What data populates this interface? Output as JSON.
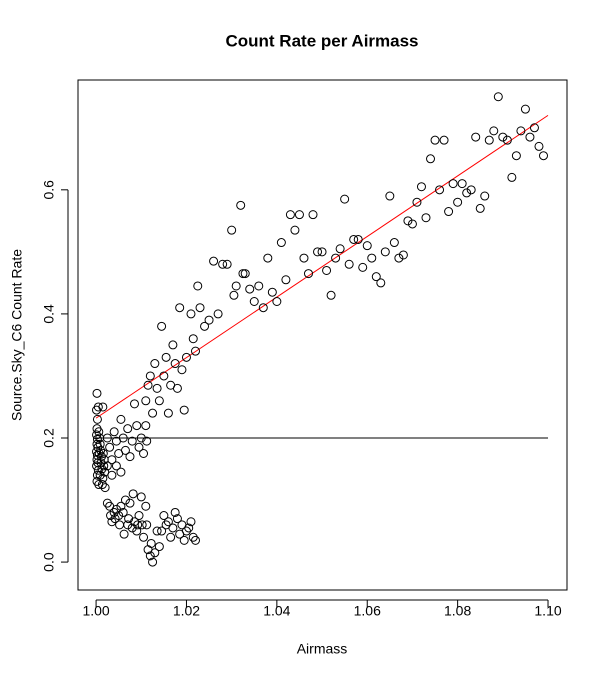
{
  "chart_data": {
    "type": "scatter",
    "title": "Count Rate per Airmass",
    "x_label": "Airmass",
    "y_label": "Source.Sky_C6 Count Rate",
    "color": "#000000",
    "xlim": [
      0.996,
      1.1042
    ],
    "ylim": [
      -0.045,
      0.777
    ],
    "xticks": [
      {
        "value": 1.0,
        "label": "1.00"
      },
      1.02,
      1.04,
      1.06,
      1.08,
      {
        "value": 1.1,
        "label": "1.10"
      }
    ],
    "yticks": [
      {
        "value": 0,
        "label": "0.0"
      },
      0.2,
      0.4,
      0.6
    ],
    "x": [
      1.0002,
      1.0001,
      1.0003,
      1.0002,
      1.0001,
      1.0003,
      1.0002,
      1.0004,
      1.0001,
      1.0003,
      1.0002,
      1.0004,
      1.0001,
      1.0005,
      1.0003,
      1.0002,
      1.0006,
      1.0008,
      1.0009,
      1.001,
      1.0012,
      1.0011,
      1.0013,
      1.0009,
      1.0015,
      1.0014,
      1.0016,
      1.0018,
      1.0017,
      1.0006,
      1.0007,
      1.0019,
      1.0015,
      1.0005,
      1.002,
      1.0025,
      1.003,
      1.0032,
      1.0035,
      1.004,
      1.0042,
      1.0045,
      1.005,
      1.0052,
      1.0055,
      1.006,
      1.0062,
      1.0065,
      1.007,
      1.0072,
      1.0075,
      1.008,
      1.0082,
      1.0085,
      1.009,
      1.0092,
      1.0095,
      1.01,
      1.0102,
      1.0105,
      1.011,
      1.0112,
      1.0115,
      1.012,
      1.0122,
      1.0125,
      1.013,
      1.0135,
      1.014,
      1.0145,
      1.015,
      1.0155,
      1.016,
      1.0165,
      1.017,
      1.0175,
      1.018,
      1.0185,
      1.019,
      1.0195,
      1.02,
      1.0205,
      1.021,
      1.0215,
      1.022,
      1.0025,
      1.003,
      1.0035,
      1.004,
      1.0045,
      1.005,
      1.0055,
      1.006,
      1.0065,
      1.007,
      1.0075,
      1.008,
      1.0085,
      1.009,
      1.0095,
      1.01,
      1.0105,
      1.011,
      1.0112,
      1.0035,
      1.0045,
      1.0055,
      1.0025,
      1.011,
      1.0115,
      1.012,
      1.0125,
      1.013,
      1.0135,
      1.014,
      1.0145,
      1.015,
      1.0155,
      1.016,
      1.0165,
      1.017,
      1.0175,
      1.018,
      1.0185,
      1.019,
      1.0195,
      1.02,
      1.021,
      1.0215,
      1.022,
      1.0225,
      1.023,
      1.024,
      1.025,
      1.026,
      1.027,
      1.028,
      1.029,
      1.03,
      1.0305,
      1.031,
      1.032,
      1.0325,
      1.033,
      1.034,
      1.035,
      1.036,
      1.037,
      1.038,
      1.039,
      1.04,
      1.041,
      1.042,
      1.043,
      1.044,
      1.045,
      1.046,
      1.047,
      1.048,
      1.049,
      1.05,
      1.051,
      1.052,
      1.053,
      1.054,
      1.055,
      1.056,
      1.057,
      1.058,
      1.059,
      1.06,
      1.061,
      1.062,
      1.063,
      1.064,
      1.065,
      1.066,
      1.067,
      1.068,
      1.069,
      1.07,
      1.071,
      1.072,
      1.073,
      1.074,
      1.075,
      1.076,
      1.077,
      1.078,
      1.079,
      1.08,
      1.081,
      1.082,
      1.083,
      1.084,
      1.085,
      1.086,
      1.087,
      1.088,
      1.089,
      1.09,
      1.091,
      1.092,
      1.093,
      1.094,
      1.095,
      1.096,
      1.097,
      1.098,
      1.099
    ],
    "values": [
      0.272,
      0.245,
      0.23,
      0.215,
      0.205,
      0.198,
      0.19,
      0.185,
      0.178,
      0.172,
      0.165,
      0.16,
      0.155,
      0.148,
      0.14,
      0.13,
      0.125,
      0.2,
      0.19,
      0.18,
      0.17,
      0.16,
      0.15,
      0.14,
      0.135,
      0.125,
      0.175,
      0.165,
      0.155,
      0.21,
      0.175,
      0.145,
      0.25,
      0.25,
      0.12,
      0.095,
      0.09,
      0.075,
      0.065,
      0.08,
      0.07,
      0.085,
      0.075,
      0.06,
      0.09,
      0.08,
      0.045,
      0.1,
      0.06,
      0.07,
      0.095,
      0.055,
      0.11,
      0.065,
      0.05,
      0.06,
      0.075,
      0.105,
      0.06,
      0.04,
      0.09,
      0.06,
      0.02,
      0.01,
      0.03,
      0.0,
      0.015,
      0.05,
      0.025,
      0.05,
      0.075,
      0.06,
      0.065,
      0.04,
      0.055,
      0.08,
      0.07,
      0.045,
      0.06,
      0.035,
      0.05,
      0.055,
      0.065,
      0.04,
      0.035,
      0.2,
      0.185,
      0.165,
      0.21,
      0.195,
      0.175,
      0.23,
      0.2,
      0.18,
      0.215,
      0.17,
      0.195,
      0.255,
      0.22,
      0.185,
      0.2,
      0.175,
      0.22,
      0.195,
      0.14,
      0.155,
      0.145,
      0.155,
      0.26,
      0.285,
      0.3,
      0.24,
      0.32,
      0.28,
      0.26,
      0.38,
      0.3,
      0.33,
      0.24,
      0.285,
      0.35,
      0.32,
      0.28,
      0.41,
      0.31,
      0.245,
      0.33,
      0.4,
      0.36,
      0.34,
      0.445,
      0.41,
      0.38,
      0.39,
      0.485,
      0.4,
      0.48,
      0.48,
      0.535,
      0.43,
      0.445,
      0.575,
      0.465,
      0.465,
      0.44,
      0.42,
      0.445,
      0.41,
      0.49,
      0.435,
      0.42,
      0.515,
      0.455,
      0.56,
      0.535,
      0.56,
      0.49,
      0.465,
      0.56,
      0.5,
      0.5,
      0.47,
      0.43,
      0.49,
      0.505,
      0.585,
      0.48,
      0.52,
      0.52,
      0.475,
      0.51,
      0.49,
      0.46,
      0.45,
      0.5,
      0.59,
      0.515,
      0.49,
      0.495,
      0.55,
      0.545,
      0.58,
      0.605,
      0.555,
      0.65,
      0.68,
      0.6,
      0.68,
      0.565,
      0.61,
      0.58,
      0.61,
      0.595,
      0.6,
      0.685,
      0.57,
      0.59,
      0.68,
      0.695,
      0.75,
      0.685,
      0.68,
      0.62,
      0.655,
      0.695,
      0.73,
      0.685,
      0.7,
      0.67,
      0.655
    ],
    "lines": [
      {
        "color": "#ff0000",
        "x": [
          1.0,
          1.1
        ],
        "y": [
          0.232,
          0.72
        ]
      },
      {
        "color": "#000000",
        "x": [
          1.0,
          1.1
        ],
        "y": [
          0.2,
          0.2
        ]
      }
    ]
  }
}
